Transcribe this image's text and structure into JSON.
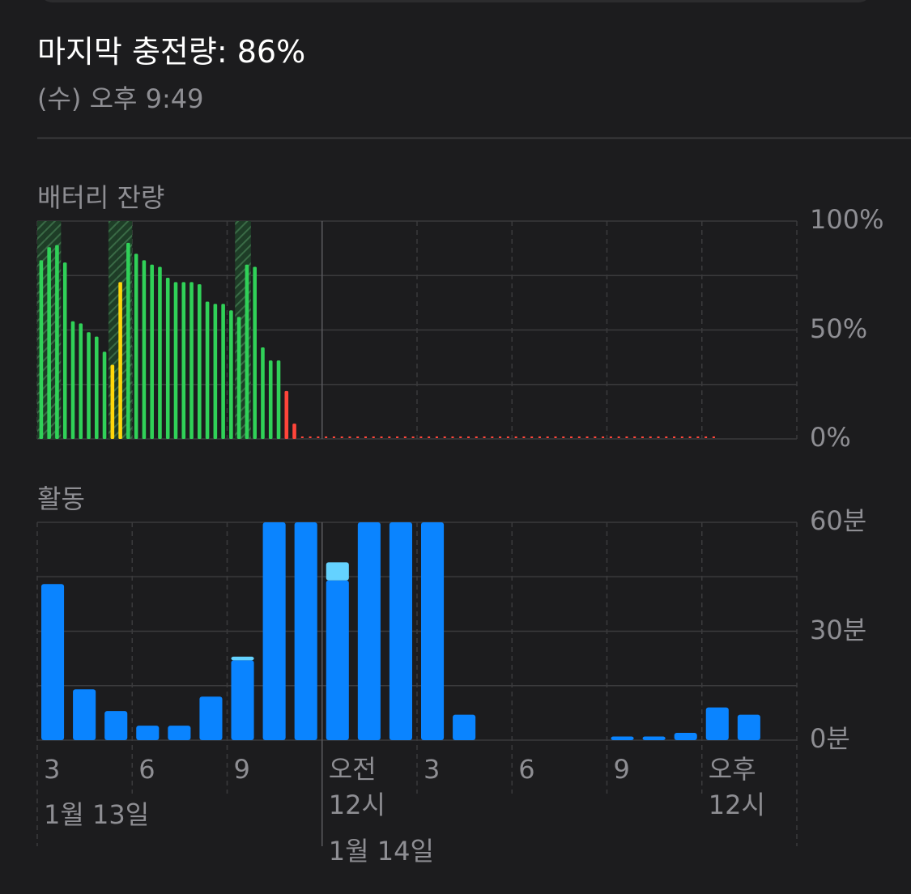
{
  "header": {
    "title": "마지막 충전량: 86%",
    "subtitle": "(수) 오후 9:49"
  },
  "chart_data": [
    {
      "type": "bar",
      "title": "배터리 잔량",
      "x": [
        0,
        0.25,
        0.5,
        0.75,
        1,
        1.25,
        1.5,
        1.75,
        2,
        2.25,
        2.5,
        2.75,
        3,
        3.25,
        3.5,
        3.75,
        4,
        4.25,
        4.5,
        4.75,
        5,
        5.25,
        5.5,
        5.75,
        6,
        6.25,
        6.5,
        6.75,
        7,
        7.25,
        7.5,
        7.75,
        8,
        8.25,
        8.5,
        8.75,
        9,
        9.25,
        9.5,
        9.75,
        10,
        10.25,
        10.5,
        10.75,
        11,
        11.25,
        11.5,
        11.75,
        12,
        12.25,
        12.5,
        12.75,
        13,
        13.25,
        13.5,
        13.75,
        14,
        14.25,
        14.5,
        14.75,
        15,
        15.25,
        15.5,
        15.75,
        16,
        16.25,
        16.5,
        16.75,
        17,
        17.25,
        17.5,
        17.75,
        18,
        18.25,
        18.5,
        18.75,
        19,
        19.25,
        19.5,
        19.75,
        20,
        20.25,
        20.5,
        20.75,
        21,
        21.25
      ],
      "values": [
        82,
        88,
        89,
        81,
        54,
        53,
        49,
        47,
        40,
        34,
        72,
        90,
        85,
        82,
        80,
        79,
        74,
        72,
        72,
        72,
        71,
        63,
        62,
        62,
        59,
        56,
        80,
        79,
        42,
        36,
        36,
        22,
        7,
        0,
        0,
        0,
        0,
        0,
        0,
        0,
        0,
        0,
        0,
        0,
        0,
        0,
        0,
        0,
        0,
        0,
        0,
        0,
        0,
        0,
        0,
        0,
        0,
        0,
        0,
        0,
        0,
        0,
        0,
        0,
        0,
        0,
        0,
        0,
        0,
        0,
        0,
        0,
        0,
        0,
        0,
        0,
        0,
        0,
        0,
        0,
        0,
        0,
        0,
        0,
        0,
        0
      ],
      "colors": [
        "#30d158",
        "#30d158",
        "#30d158",
        "#30d158",
        "#30d158",
        "#30d158",
        "#30d158",
        "#30d158",
        "#30d158",
        "#ffd60a",
        "#ffd60a",
        "#30d158",
        "#30d158",
        "#30d158",
        "#30d158",
        "#30d158",
        "#30d158",
        "#30d158",
        "#30d158",
        "#30d158",
        "#30d158",
        "#30d158",
        "#30d158",
        "#30d158",
        "#30d158",
        "#30d158",
        "#30d158",
        "#30d158",
        "#30d158",
        "#30d158",
        "#30d158",
        "#ff453a",
        "#ff453a",
        "#ff453a",
        "#ff453a",
        "#ff453a",
        "#ff453a",
        "#ff453a",
        "#ff453a",
        "#ff453a",
        "#ff453a",
        "#ff453a",
        "#ff453a",
        "#ff453a",
        "#ff453a",
        "#ff453a",
        "#ff453a",
        "#ff453a",
        "#ff453a",
        "#ff453a",
        "#ff453a",
        "#ff453a",
        "#ff453a",
        "#ff453a",
        "#ff453a",
        "#ff453a",
        "#ff453a",
        "#ff453a",
        "#ff453a",
        "#ff453a",
        "#ff453a",
        "#ff453a",
        "#ff453a",
        "#ff453a",
        "#ff453a",
        "#ff453a",
        "#ff453a",
        "#ff453a",
        "#ff453a",
        "#ff453a",
        "#ff453a",
        "#ff453a",
        "#ff453a",
        "#ff453a",
        "#ff453a",
        "#ff453a",
        "#ff453a",
        "#ff453a",
        "#ff453a",
        "#ff453a",
        "#ff453a",
        "#ff453a",
        "#ff453a",
        "#ff453a",
        "#ff453a",
        "#ff453a"
      ],
      "charging": [
        0,
        1,
        2,
        9,
        10,
        11,
        25,
        26
      ],
      "xlim": [
        0,
        24
      ],
      "xticks": [
        0,
        3,
        6,
        9,
        12,
        15,
        18,
        21,
        24
      ],
      "ylim": [
        0,
        100
      ],
      "yticks": [
        {
          "value": 0,
          "label": "0%"
        },
        {
          "value": 50,
          "label": "50%"
        },
        {
          "value": 100,
          "label": "100%"
        }
      ],
      "minor_yticks": [
        25,
        75
      ],
      "grid": true
    },
    {
      "type": "stacked-bar",
      "title": "활동",
      "x": [
        0,
        1,
        2,
        3,
        4,
        5,
        6,
        7,
        8,
        9,
        10,
        11,
        12,
        13,
        14,
        15,
        16,
        17,
        18,
        19,
        20,
        21,
        22,
        23
      ],
      "series": [
        {
          "color": "#0a84ff",
          "values": [
            43,
            14,
            8,
            4,
            4,
            12,
            22,
            60,
            60,
            44,
            60,
            60,
            60,
            7,
            0,
            0,
            0,
            0,
            1,
            1,
            2,
            9,
            7,
            0
          ]
        },
        {
          "color": "#64d2ff",
          "values": [
            0,
            0,
            0,
            0,
            0,
            0,
            1,
            0,
            0,
            5,
            0,
            0,
            0,
            0,
            0,
            0,
            0,
            0,
            0,
            0,
            0,
            0,
            0,
            0
          ]
        }
      ],
      "xlim": [
        0,
        24
      ],
      "xticks": [
        {
          "value": 0,
          "label": "3"
        },
        {
          "value": 3,
          "label": "6"
        },
        {
          "value": 6,
          "label": "9"
        },
        {
          "value": 9,
          "label": "오전 12시"
        },
        {
          "value": 12,
          "label": "3"
        },
        {
          "value": 15,
          "label": "6"
        },
        {
          "value": 18,
          "label": "9"
        },
        {
          "value": 21,
          "label": "오후 12시"
        }
      ],
      "date_labels": [
        {
          "value": 0,
          "label": "1월 13일"
        },
        {
          "value": 9,
          "label": "1월 14일"
        }
      ],
      "ylim": [
        0,
        60
      ],
      "yticks": [
        {
          "value": 0,
          "label": "0분"
        },
        {
          "value": 30,
          "label": "30분"
        },
        {
          "value": 60,
          "label": "60분"
        }
      ],
      "minor_yticks": [
        15,
        45
      ],
      "grid": true
    }
  ]
}
